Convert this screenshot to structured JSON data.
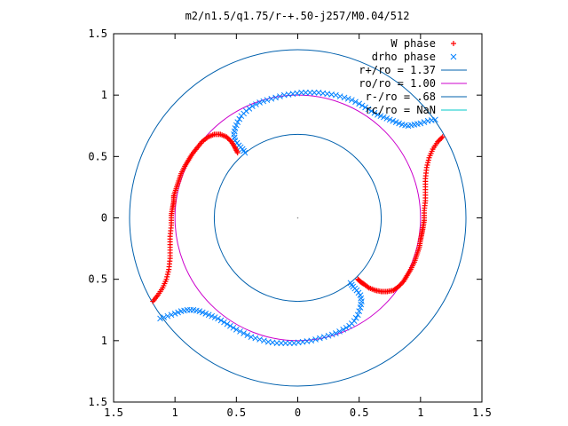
{
  "chart_data": {
    "type": "scatter",
    "title": "m2/n1.5/q1.75/r-+.50-j257/M0.04/512",
    "xlabel": "",
    "ylabel": "",
    "xlim": [
      -1.5,
      1.5
    ],
    "ylim": [
      -1.5,
      1.5
    ],
    "x_ticks": [
      {
        "value": -1.5,
        "label": "1.5"
      },
      {
        "value": -1.0,
        "label": "1"
      },
      {
        "value": -0.5,
        "label": "0.5"
      },
      {
        "value": 0.0,
        "label": "0"
      },
      {
        "value": 0.5,
        "label": "0.5"
      },
      {
        "value": 1.0,
        "label": "1"
      },
      {
        "value": 1.5,
        "label": "1.5"
      }
    ],
    "y_ticks": [
      {
        "value": 1.5,
        "label": "1.5"
      },
      {
        "value": 1.0,
        "label": "1"
      },
      {
        "value": 0.5,
        "label": "0.5"
      },
      {
        "value": 0.0,
        "label": "0"
      },
      {
        "value": -0.5,
        "label": "0.5"
      },
      {
        "value": -1.0,
        "label": "1"
      },
      {
        "value": -1.5,
        "label": "1.5"
      }
    ],
    "grid": false,
    "legend_position": "top-right",
    "series": [
      {
        "name": "W phase",
        "kind": "points",
        "marker": "plus",
        "color": "#ff0000",
        "points": [
          [
            -1.18,
            -0.68
          ],
          [
            -1.14,
            -0.63
          ],
          [
            -1.1,
            -0.57
          ],
          [
            -1.07,
            -0.5
          ],
          [
            -1.05,
            -0.42
          ],
          [
            -1.04,
            -0.33
          ],
          [
            -1.04,
            -0.24
          ],
          [
            -1.04,
            -0.15
          ],
          [
            -1.03,
            -0.06
          ],
          [
            -1.03,
            0.02
          ],
          [
            -1.02,
            0.08
          ],
          [
            -1.01,
            0.13
          ],
          [
            -1.01,
            0.18
          ],
          [
            -0.99,
            0.24
          ],
          [
            -0.97,
            0.3
          ],
          [
            -0.95,
            0.36
          ],
          [
            -0.92,
            0.42
          ],
          [
            -0.89,
            0.47
          ],
          [
            -0.86,
            0.52
          ],
          [
            -0.82,
            0.57
          ],
          [
            -0.78,
            0.62
          ],
          [
            -0.73,
            0.66
          ],
          [
            -0.68,
            0.68
          ],
          [
            -0.63,
            0.68
          ],
          [
            -0.58,
            0.66
          ],
          [
            -0.54,
            0.62
          ],
          [
            -0.51,
            0.57
          ],
          [
            -0.49,
            0.53
          ],
          [
            1.18,
            0.66
          ],
          [
            1.14,
            0.62
          ],
          [
            1.1,
            0.56
          ],
          [
            1.07,
            0.49
          ],
          [
            1.05,
            0.41
          ],
          [
            1.04,
            0.32
          ],
          [
            1.04,
            0.23
          ],
          [
            1.04,
            0.14
          ],
          [
            1.03,
            0.06
          ],
          [
            1.03,
            -0.02
          ],
          [
            1.02,
            -0.08
          ],
          [
            1.01,
            -0.13
          ],
          [
            1.0,
            -0.18
          ],
          [
            0.99,
            -0.24
          ],
          [
            0.97,
            -0.3
          ],
          [
            0.95,
            -0.36
          ],
          [
            0.92,
            -0.42
          ],
          [
            0.89,
            -0.47
          ],
          [
            0.86,
            -0.52
          ],
          [
            0.82,
            -0.56
          ],
          [
            0.78,
            -0.59
          ],
          [
            0.73,
            -0.6
          ],
          [
            0.68,
            -0.6
          ],
          [
            0.63,
            -0.59
          ],
          [
            0.58,
            -0.57
          ],
          [
            0.54,
            -0.54
          ],
          [
            0.51,
            -0.52
          ],
          [
            0.49,
            -0.5
          ]
        ]
      },
      {
        "name": "drho phase",
        "kind": "points",
        "marker": "cross",
        "color": "#0080ff",
        "points": [
          [
            -1.12,
            -0.82
          ],
          [
            -1.06,
            -0.8
          ],
          [
            -1.0,
            -0.78
          ],
          [
            -0.95,
            -0.76
          ],
          [
            -0.9,
            -0.75
          ],
          [
            -0.85,
            -0.75
          ],
          [
            -0.8,
            -0.76
          ],
          [
            -0.75,
            -0.78
          ],
          [
            -0.7,
            -0.8
          ],
          [
            -0.65,
            -0.82
          ],
          [
            -0.6,
            -0.85
          ],
          [
            -0.55,
            -0.88
          ],
          [
            -0.5,
            -0.91
          ],
          [
            -0.44,
            -0.94
          ],
          [
            -0.38,
            -0.97
          ],
          [
            -0.31,
            -0.99
          ],
          [
            -0.24,
            -1.01
          ],
          [
            -0.17,
            -1.02
          ],
          [
            -0.1,
            -1.02
          ],
          [
            -0.03,
            -1.02
          ],
          [
            0.04,
            -1.01
          ],
          [
            0.11,
            -1.0
          ],
          [
            0.18,
            -0.98
          ],
          [
            0.25,
            -0.96
          ],
          [
            0.31,
            -0.94
          ],
          [
            0.37,
            -0.91
          ],
          [
            0.42,
            -0.88
          ],
          [
            0.46,
            -0.84
          ],
          [
            0.49,
            -0.79
          ],
          [
            0.51,
            -0.73
          ],
          [
            0.52,
            -0.68
          ],
          [
            0.51,
            -0.63
          ],
          [
            0.48,
            -0.59
          ],
          [
            0.45,
            -0.56
          ],
          [
            0.43,
            -0.53
          ],
          [
            1.12,
            0.8
          ],
          [
            1.06,
            0.79
          ],
          [
            1.0,
            0.77
          ],
          [
            0.95,
            0.76
          ],
          [
            0.9,
            0.75
          ],
          [
            0.85,
            0.76
          ],
          [
            0.8,
            0.78
          ],
          [
            0.75,
            0.8
          ],
          [
            0.7,
            0.82
          ],
          [
            0.65,
            0.84
          ],
          [
            0.6,
            0.87
          ],
          [
            0.55,
            0.9
          ],
          [
            0.5,
            0.93
          ],
          [
            0.44,
            0.96
          ],
          [
            0.38,
            0.98
          ],
          [
            0.31,
            1.0
          ],
          [
            0.24,
            1.01
          ],
          [
            0.17,
            1.02
          ],
          [
            0.1,
            1.02
          ],
          [
            0.03,
            1.02
          ],
          [
            -0.04,
            1.01
          ],
          [
            -0.11,
            1.0
          ],
          [
            -0.18,
            0.98
          ],
          [
            -0.25,
            0.96
          ],
          [
            -0.31,
            0.94
          ],
          [
            -0.37,
            0.91
          ],
          [
            -0.42,
            0.87
          ],
          [
            -0.46,
            0.83
          ],
          [
            -0.49,
            0.78
          ],
          [
            -0.51,
            0.73
          ],
          [
            -0.52,
            0.68
          ],
          [
            -0.51,
            0.63
          ],
          [
            -0.48,
            0.59
          ],
          [
            -0.45,
            0.56
          ],
          [
            -0.43,
            0.53
          ]
        ]
      },
      {
        "name": "r+/ro = 1.37",
        "kind": "circle",
        "radius": 1.37,
        "color": "#0060ad"
      },
      {
        "name": "ro/ro = 1.00",
        "kind": "circle",
        "radius": 1.0,
        "color": "#cc00cc"
      },
      {
        "name": "r-/ro = .68",
        "kind": "circle",
        "radius": 0.68,
        "color": "#0060ad"
      },
      {
        "name": "rc/ro = NaN",
        "kind": "circle",
        "radius": null,
        "color": "#00c8c8"
      }
    ]
  }
}
